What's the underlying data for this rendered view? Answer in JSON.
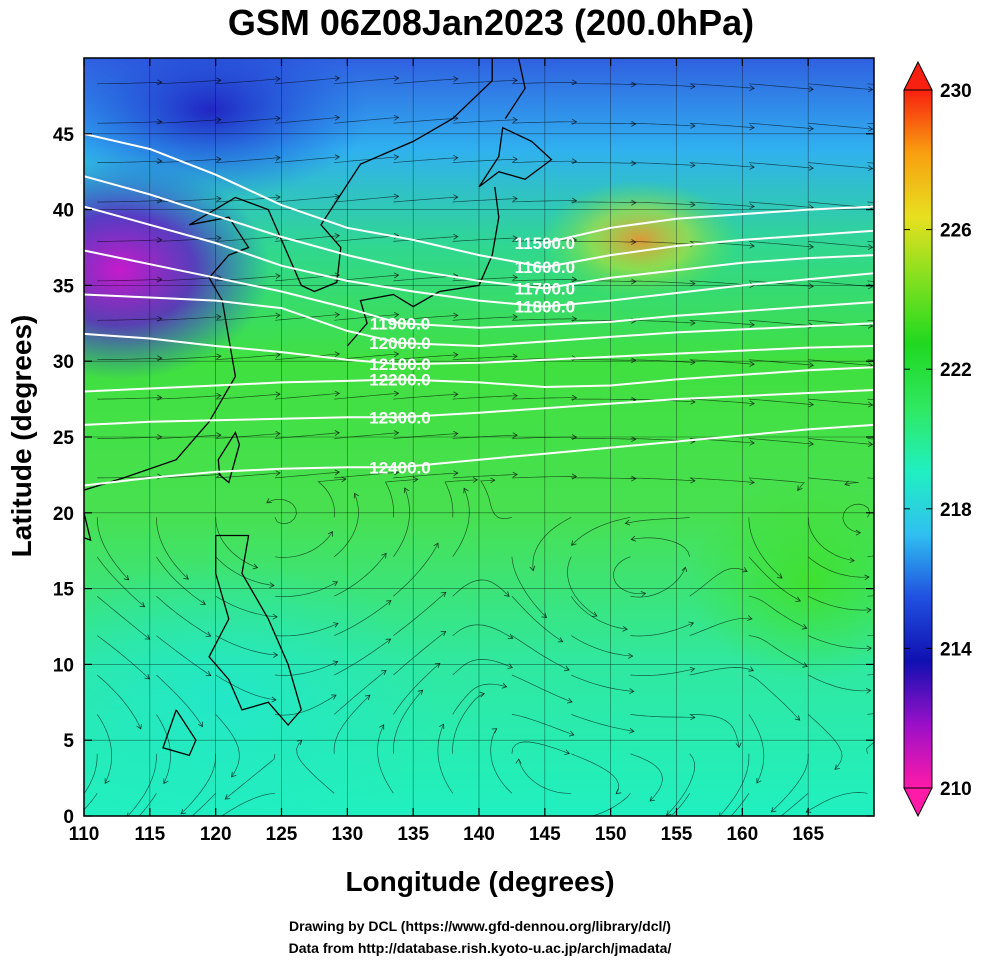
{
  "title": "GSM 06Z08Jan2023 (200.0hPa)",
  "xlabel": "Longitude (degrees)",
  "ylabel": "Latitude  (degrees)",
  "credits": {
    "line1": "Drawing by DCL (https://www.gfd-dennou.org/library/dcl/)",
    "line2": "Data from http://database.rish.kyoto-u.ac.jp/arch/jmadata/"
  },
  "chart_data": {
    "type": "heatmap",
    "xlim": [
      110,
      170
    ],
    "ylim": [
      0,
      50
    ],
    "xticks": [
      110,
      115,
      120,
      125,
      130,
      135,
      140,
      145,
      150,
      155,
      160,
      165
    ],
    "yticks": [
      0,
      5,
      10,
      15,
      20,
      25,
      30,
      35,
      40,
      45
    ],
    "grid": true,
    "colorbar": {
      "position": "right",
      "min": 210,
      "max": 230,
      "ticks": [
        210,
        214,
        218,
        222,
        226,
        230
      ],
      "colors": [
        "#ff1aa8",
        "#9a10c8",
        "#1010b0",
        "#2050e0",
        "#30c0f0",
        "#20f0c0",
        "#30e860",
        "#20d820",
        "#80e020",
        "#e8e020",
        "#f8a010",
        "#f82010"
      ]
    },
    "contours": [
      {
        "label": "11500.0",
        "value": 11500,
        "label_at": [
          145,
          37.8
        ],
        "points": [
          [
            145,
            37.8
          ],
          [
            150,
            38.8
          ],
          [
            155,
            39.4
          ],
          [
            160,
            39.7
          ],
          [
            165,
            40.0
          ],
          [
            170,
            40.2
          ]
        ]
      },
      {
        "label": "11600.0",
        "value": 11600,
        "label_at": [
          145,
          36.2
        ],
        "points": [
          [
            110,
            45.0
          ],
          [
            115,
            44.0
          ],
          [
            120,
            42.3
          ],
          [
            125,
            40.3
          ],
          [
            130,
            38.8
          ],
          [
            135,
            38.0
          ],
          [
            140,
            37.0
          ],
          [
            145,
            36.2
          ],
          [
            150,
            37.0
          ],
          [
            155,
            37.6
          ],
          [
            160,
            38.0
          ],
          [
            165,
            38.3
          ],
          [
            170,
            38.6
          ]
        ]
      },
      {
        "label": "11700.0",
        "value": 11700,
        "label_at": [
          145,
          34.8
        ],
        "points": [
          [
            110,
            42.2
          ],
          [
            115,
            41.0
          ],
          [
            120,
            39.6
          ],
          [
            125,
            38.2
          ],
          [
            130,
            37.0
          ],
          [
            135,
            36.0
          ],
          [
            140,
            35.3
          ],
          [
            145,
            34.8
          ],
          [
            150,
            35.5
          ],
          [
            155,
            36.0
          ],
          [
            160,
            36.5
          ],
          [
            165,
            36.8
          ],
          [
            170,
            37.0
          ]
        ]
      },
      {
        "label": "11800.0",
        "value": 11800,
        "label_at": [
          145,
          33.6
        ],
        "points": [
          [
            110,
            40.2
          ],
          [
            115,
            39.0
          ],
          [
            120,
            37.8
          ],
          [
            125,
            36.3
          ],
          [
            130,
            35.3
          ],
          [
            135,
            34.6
          ],
          [
            140,
            34.0
          ],
          [
            145,
            33.6
          ],
          [
            150,
            34.0
          ],
          [
            155,
            34.5
          ],
          [
            160,
            35.0
          ],
          [
            165,
            35.4
          ],
          [
            170,
            35.8
          ]
        ]
      },
      {
        "label": "11900.0",
        "value": 11900,
        "label_at": [
          134,
          32.5
        ],
        "points": [
          [
            110,
            37.3
          ],
          [
            115,
            36.4
          ],
          [
            120,
            35.5
          ],
          [
            125,
            34.6
          ],
          [
            130,
            33.5
          ],
          [
            134,
            32.5
          ],
          [
            140,
            32.2
          ],
          [
            145,
            32.4
          ],
          [
            150,
            32.6
          ],
          [
            155,
            33.0
          ],
          [
            160,
            33.3
          ],
          [
            165,
            33.6
          ],
          [
            170,
            33.9
          ]
        ]
      },
      {
        "label": "12000.0",
        "value": 12000,
        "label_at": [
          134,
          31.2
        ],
        "points": [
          [
            110,
            34.4
          ],
          [
            115,
            34.2
          ],
          [
            120,
            34.0
          ],
          [
            125,
            33.5
          ],
          [
            130,
            32.0
          ],
          [
            134,
            31.2
          ],
          [
            140,
            31.0
          ],
          [
            145,
            31.3
          ],
          [
            150,
            31.6
          ],
          [
            155,
            31.9
          ],
          [
            160,
            32.1
          ],
          [
            165,
            32.3
          ],
          [
            170,
            32.5
          ]
        ]
      },
      {
        "label": "12100.0",
        "value": 12100,
        "label_at": [
          134,
          29.8
        ],
        "points": [
          [
            110,
            31.8
          ],
          [
            115,
            31.5
          ],
          [
            120,
            31.0
          ],
          [
            125,
            30.6
          ],
          [
            130,
            30.1
          ],
          [
            134,
            29.8
          ],
          [
            140,
            29.9
          ],
          [
            145,
            30.1
          ],
          [
            150,
            30.3
          ],
          [
            155,
            30.5
          ],
          [
            160,
            30.7
          ],
          [
            165,
            30.9
          ],
          [
            170,
            31.0
          ]
        ]
      },
      {
        "label": "12200.0",
        "value": 12200,
        "label_at": [
          134,
          28.8
        ],
        "points": [
          [
            110,
            28.0
          ],
          [
            115,
            28.2
          ],
          [
            120,
            28.4
          ],
          [
            125,
            28.6
          ],
          [
            130,
            28.7
          ],
          [
            134,
            28.8
          ],
          [
            140,
            28.6
          ],
          [
            145,
            28.3
          ],
          [
            150,
            28.4
          ],
          [
            155,
            28.8
          ],
          [
            160,
            29.1
          ],
          [
            165,
            29.4
          ],
          [
            170,
            29.6
          ]
        ]
      },
      {
        "label": "12300.0",
        "value": 12300,
        "label_at": [
          134,
          26.3
        ],
        "points": [
          [
            110,
            25.8
          ],
          [
            115,
            26.0
          ],
          [
            120,
            26.1
          ],
          [
            125,
            26.2
          ],
          [
            130,
            26.3
          ],
          [
            134,
            26.3
          ],
          [
            140,
            26.6
          ],
          [
            145,
            26.9
          ],
          [
            150,
            27.2
          ],
          [
            155,
            27.5
          ],
          [
            160,
            27.7
          ],
          [
            165,
            27.9
          ],
          [
            170,
            28.1
          ]
        ]
      },
      {
        "label": "12400.0",
        "value": 12400,
        "label_at": [
          134,
          23.0
        ],
        "points": [
          [
            110,
            21.8
          ],
          [
            115,
            22.3
          ],
          [
            120,
            22.7
          ],
          [
            125,
            22.9
          ],
          [
            130,
            23.0
          ],
          [
            134,
            23.0
          ],
          [
            140,
            23.5
          ],
          [
            145,
            23.9
          ],
          [
            150,
            24.3
          ],
          [
            155,
            24.7
          ],
          [
            160,
            25.1
          ],
          [
            165,
            25.5
          ],
          [
            170,
            25.8
          ]
        ]
      }
    ]
  }
}
